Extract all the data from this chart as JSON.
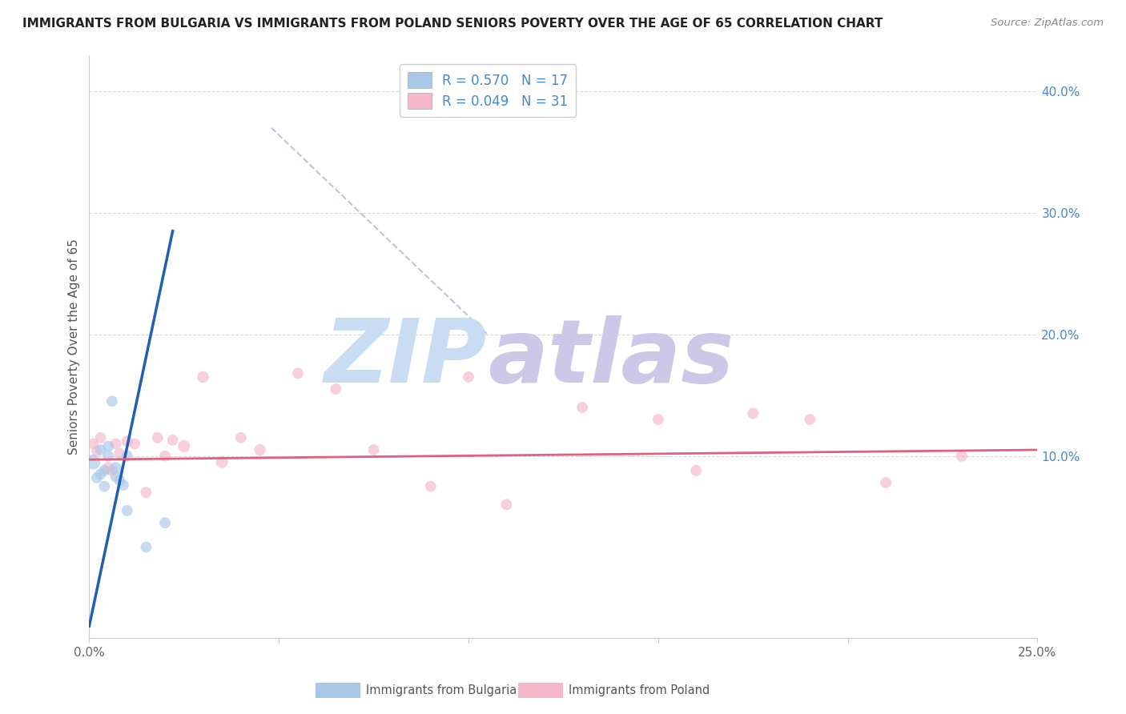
{
  "title": "IMMIGRANTS FROM BULGARIA VS IMMIGRANTS FROM POLAND SENIORS POVERTY OVER THE AGE OF 65 CORRELATION CHART",
  "source": "Source: ZipAtlas.com",
  "ylabel": "Seniors Poverty Over the Age of 65",
  "xlim": [
    0.0,
    0.25
  ],
  "ylim": [
    -0.05,
    0.43
  ],
  "xticks": [
    0.0,
    0.05,
    0.1,
    0.15,
    0.2,
    0.25
  ],
  "xtick_labels": [
    "0.0%",
    "",
    "",
    "",
    "",
    "25.0%"
  ],
  "yticks_right": [
    0.1,
    0.2,
    0.3,
    0.4
  ],
  "ytick_labels_right": [
    "10.0%",
    "20.0%",
    "30.0%",
    "40.0%"
  ],
  "legend_r_bulgaria": "R = 0.570",
  "legend_n_bulgaria": "N = 17",
  "legend_r_poland": "R = 0.049",
  "legend_n_poland": "N = 31",
  "color_bulgaria": "#a8c8e8",
  "color_poland": "#f4b8c8",
  "color_line_bulgaria": "#2060b0",
  "color_line_poland": "#e06080",
  "color_dashed": "#b8c8d8",
  "watermark_zip_color": "#c8dcf4",
  "watermark_atlas_color": "#ccc8e8",
  "background_color": "#ffffff",
  "grid_color": "#d8d8d8",
  "bulgaria_x": [
    0.001,
    0.002,
    0.003,
    0.003,
    0.004,
    0.004,
    0.005,
    0.005,
    0.006,
    0.007,
    0.007,
    0.008,
    0.009,
    0.01,
    0.01,
    0.015,
    0.02
  ],
  "bulgaria_y": [
    0.095,
    0.082,
    0.085,
    0.105,
    0.088,
    0.075,
    0.108,
    0.1,
    0.145,
    0.09,
    0.083,
    0.08,
    0.076,
    0.1,
    0.055,
    0.025,
    0.045
  ],
  "bulgaria_size": [
    180,
    100,
    100,
    100,
    100,
    100,
    100,
    100,
    100,
    120,
    100,
    100,
    100,
    100,
    100,
    100,
    100
  ],
  "poland_x": [
    0.001,
    0.002,
    0.003,
    0.005,
    0.006,
    0.007,
    0.008,
    0.01,
    0.012,
    0.015,
    0.018,
    0.02,
    0.022,
    0.025,
    0.03,
    0.035,
    0.04,
    0.045,
    0.055,
    0.065,
    0.075,
    0.09,
    0.1,
    0.11,
    0.13,
    0.15,
    0.16,
    0.175,
    0.19,
    0.21,
    0.23
  ],
  "poland_y": [
    0.11,
    0.104,
    0.115,
    0.09,
    0.088,
    0.11,
    0.102,
    0.112,
    0.11,
    0.07,
    0.115,
    0.1,
    0.113,
    0.108,
    0.165,
    0.095,
    0.115,
    0.105,
    0.168,
    0.155,
    0.105,
    0.075,
    0.165,
    0.06,
    0.14,
    0.13,
    0.088,
    0.135,
    0.13,
    0.078,
    0.1
  ],
  "poland_size": [
    100,
    100,
    100,
    120,
    100,
    100,
    100,
    100,
    100,
    100,
    100,
    100,
    100,
    120,
    110,
    120,
    100,
    110,
    100,
    100,
    100,
    100,
    100,
    100,
    100,
    100,
    100,
    100,
    100,
    100,
    110
  ],
  "blue_line_x": [
    0.0,
    0.022
  ],
  "blue_line_y": [
    -0.04,
    0.285
  ],
  "pink_line_x": [
    0.0,
    0.25
  ],
  "pink_line_y": [
    0.097,
    0.105
  ],
  "dash_line_x": [
    0.048,
    0.105
  ],
  "dash_line_y": [
    0.37,
    0.2
  ]
}
